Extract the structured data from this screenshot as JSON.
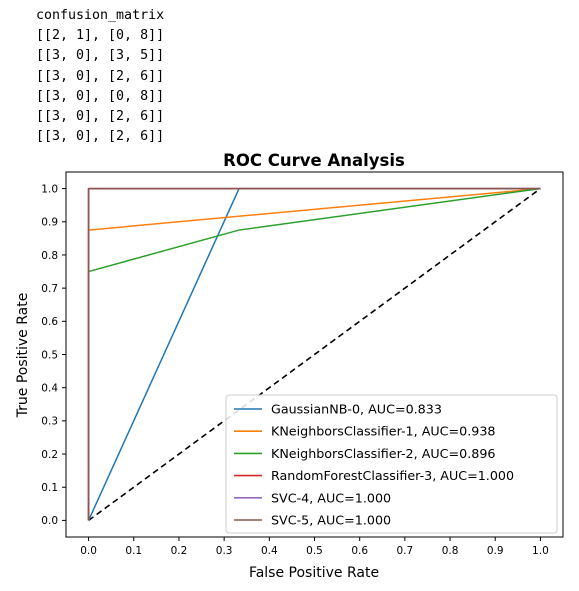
{
  "output_lines": [
    "confusion_matrix",
    "[[2, 1], [0, 8]]",
    "[[3, 0], [3, 5]]",
    "[[3, 0], [2, 6]]",
    "[[3, 0], [0, 8]]",
    "[[3, 0], [2, 6]]",
    "[[3, 0], [2, 6]]"
  ],
  "chart_data": {
    "type": "line",
    "title": "ROC Curve Analysis",
    "xlabel": "False Positive Rate",
    "ylabel": "True Positive Rate",
    "xlim": [
      -0.05,
      1.05
    ],
    "ylim": [
      -0.05,
      1.05
    ],
    "xticks": [
      0.0,
      0.1,
      0.2,
      0.3,
      0.4,
      0.5,
      0.6,
      0.7,
      0.8,
      0.9,
      1.0
    ],
    "yticks": [
      0.0,
      0.1,
      0.2,
      0.3,
      0.4,
      0.5,
      0.6,
      0.7,
      0.8,
      0.9,
      1.0
    ],
    "grid": false,
    "legend_position": "lower-right",
    "series": [
      {
        "name": "GaussianNB-0, AUC=0.833",
        "color": "#1f77b4",
        "x": [
          0.0,
          0.333,
          1.0
        ],
        "y": [
          0.0,
          1.0,
          1.0
        ]
      },
      {
        "name": "KNeighborsClassifier-1, AUC=0.938",
        "color": "#ff7f0e",
        "x": [
          0.0,
          0.0,
          1.0
        ],
        "y": [
          0.0,
          0.875,
          1.0
        ]
      },
      {
        "name": "KNeighborsClassifier-2, AUC=0.896",
        "color": "#2ca02c",
        "x": [
          0.0,
          0.0,
          0.333,
          1.0
        ],
        "y": [
          0.0,
          0.75,
          0.875,
          1.0
        ]
      },
      {
        "name": "RandomForestClassifier-3, AUC=1.000",
        "color": "#d62728",
        "x": [
          0.0,
          0.0,
          1.0
        ],
        "y": [
          0.0,
          1.0,
          1.0
        ]
      },
      {
        "name": "SVC-4, AUC=1.000",
        "color": "#9467bd",
        "x": [
          0.0,
          0.0,
          1.0
        ],
        "y": [
          0.0,
          1.0,
          1.0
        ]
      },
      {
        "name": "SVC-5, AUC=1.000",
        "color": "#8c564b",
        "x": [
          0.0,
          0.0,
          1.0
        ],
        "y": [
          0.0,
          1.0,
          1.0
        ]
      }
    ],
    "reference_line": {
      "x": [
        0.0,
        1.0
      ],
      "y": [
        0.0,
        1.0
      ],
      "style": "dashed",
      "color": "#000000"
    }
  }
}
